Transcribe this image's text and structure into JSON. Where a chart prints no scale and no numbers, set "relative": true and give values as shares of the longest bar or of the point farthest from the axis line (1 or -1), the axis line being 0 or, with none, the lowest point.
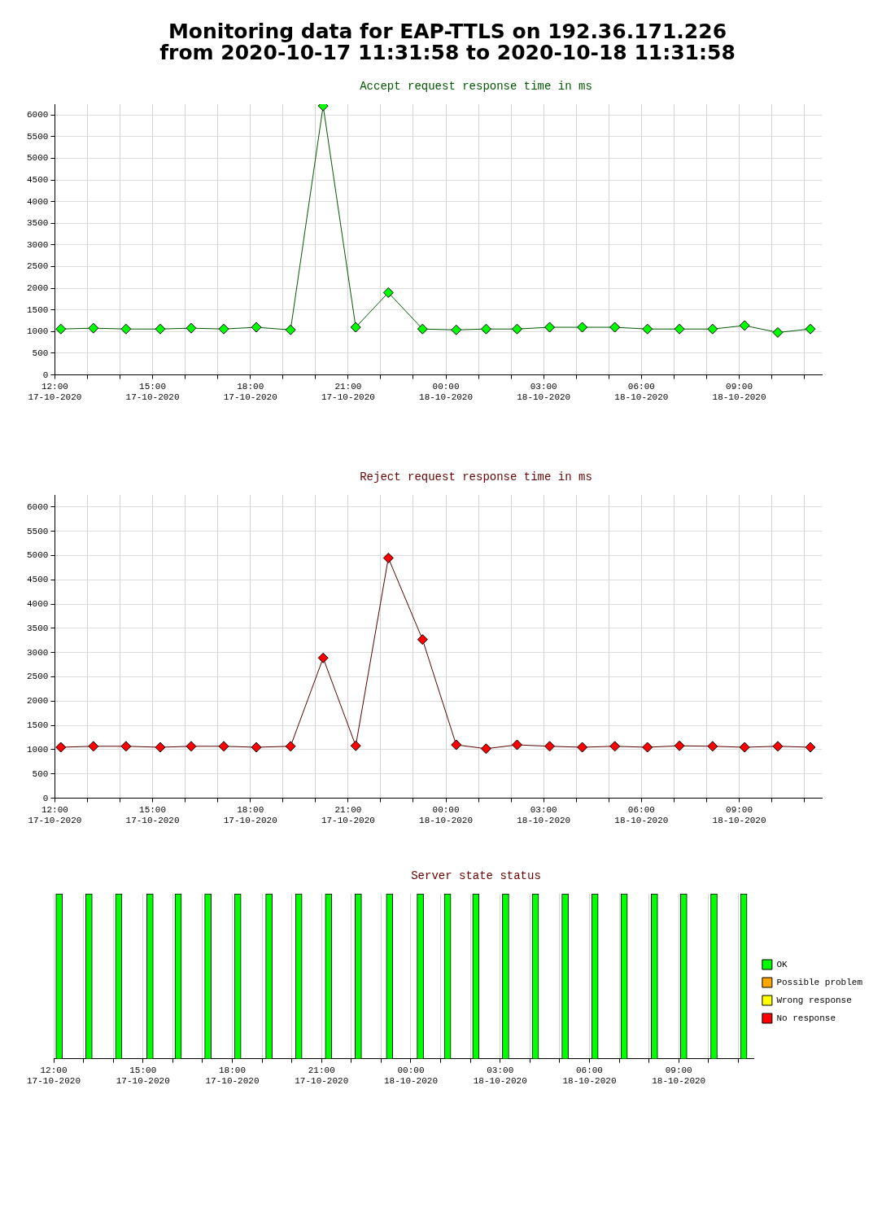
{
  "chart_data": [
    {
      "type": "line",
      "title": "Monitoring data for EAP-TTLS on 192.36.171.226\nfrom 2020-10-17 11:31:58 to 2020-10-18 11:31:58",
      "subtitle": "Accept request response time in ms",
      "x": [
        "2020-10-17T12:11",
        "2020-10-17T13:11",
        "2020-10-17T14:11",
        "2020-10-17T15:14",
        "2020-10-17T16:11",
        "2020-10-17T17:11",
        "2020-10-17T18:11",
        "2020-10-17T19:14",
        "2020-10-17T20:14",
        "2020-10-17T21:14",
        "2020-10-17T22:14",
        "2020-10-17T23:17",
        "2020-10-18T00:19",
        "2020-10-18T01:14",
        "2020-10-18T02:11",
        "2020-10-18T03:11",
        "2020-10-18T04:11",
        "2020-10-18T05:11",
        "2020-10-18T06:11",
        "2020-10-18T07:10",
        "2020-10-18T08:11",
        "2020-10-18T09:10",
        "2020-10-18T10:11",
        "2020-10-18T11:11"
      ],
      "series": [
        {
          "color": "#00ff00",
          "values": [
            1060,
            1080,
            1060,
            1060,
            1080,
            1060,
            1100,
            1040,
            6210,
            1100,
            1900,
            1060,
            1040,
            1060,
            1060,
            1100,
            1100,
            1100,
            1060,
            1060,
            1060,
            1140,
            980,
            1060
          ]
        }
      ],
      "xlim": [
        "2020-10-17T12:00",
        "2020-10-18T11:32"
      ],
      "xticks": [
        {
          "value": "2020-10-17T12:00",
          "label": "12:00\n17-10-2020"
        },
        {
          "value": "2020-10-17T13:00",
          "label": null
        },
        {
          "value": "2020-10-17T14:00",
          "label": null
        },
        {
          "value": "2020-10-17T15:00",
          "label": "15:00\n17-10-2020"
        },
        {
          "value": "2020-10-17T16:00",
          "label": null
        },
        {
          "value": "2020-10-17T17:00",
          "label": null
        },
        {
          "value": "2020-10-17T18:00",
          "label": "18:00\n17-10-2020"
        },
        {
          "value": "2020-10-17T19:00",
          "label": null
        },
        {
          "value": "2020-10-17T20:00",
          "label": null
        },
        {
          "value": "2020-10-17T21:00",
          "label": "21:00\n17-10-2020"
        },
        {
          "value": "2020-10-17T22:00",
          "label": null
        },
        {
          "value": "2020-10-17T23:00",
          "label": null
        },
        {
          "value": "2020-10-18T00:00",
          "label": "00:00\n18-10-2020"
        },
        {
          "value": "2020-10-18T01:00",
          "label": null
        },
        {
          "value": "2020-10-18T02:00",
          "label": null
        },
        {
          "value": "2020-10-18T03:00",
          "label": "03:00\n18-10-2020"
        },
        {
          "value": "2020-10-18T04:00",
          "label": null
        },
        {
          "value": "2020-10-18T05:00",
          "label": null
        },
        {
          "value": "2020-10-18T06:00",
          "label": "06:00\n18-10-2020"
        },
        {
          "value": "2020-10-18T07:00",
          "label": null
        },
        {
          "value": "2020-10-18T08:00",
          "label": null
        },
        {
          "value": "2020-10-18T09:00",
          "label": "09:00\n18-10-2020"
        },
        {
          "value": "2020-10-18T10:00",
          "label": null
        },
        {
          "value": "2020-10-18T11:00",
          "label": null
        }
      ],
      "ylim": [
        0,
        6250
      ],
      "yticks": [
        0,
        500,
        1000,
        1500,
        2000,
        2500,
        3000,
        3500,
        4000,
        4500,
        5000,
        5500,
        6000
      ],
      "grid": true,
      "marker": "diamond",
      "legend": false
    },
    {
      "type": "line",
      "title": "Reject request response time in ms",
      "x": [
        "2020-10-17T12:11",
        "2020-10-17T13:11",
        "2020-10-17T14:11",
        "2020-10-17T15:14",
        "2020-10-17T16:11",
        "2020-10-17T17:11",
        "2020-10-17T18:11",
        "2020-10-17T19:14",
        "2020-10-17T20:14",
        "2020-10-17T21:14",
        "2020-10-17T22:14",
        "2020-10-17T23:17",
        "2020-10-18T00:19",
        "2020-10-18T01:14",
        "2020-10-18T02:11",
        "2020-10-18T03:11",
        "2020-10-18T04:11",
        "2020-10-18T05:11",
        "2020-10-18T06:11",
        "2020-10-18T07:10",
        "2020-10-18T08:11",
        "2020-10-18T09:10",
        "2020-10-18T10:11",
        "2020-10-18T11:11"
      ],
      "series": [
        {
          "color": "#ff0000",
          "values": [
            1050,
            1070,
            1070,
            1050,
            1070,
            1070,
            1050,
            1070,
            2890,
            1080,
            4950,
            3270,
            1100,
            1020,
            1100,
            1070,
            1050,
            1070,
            1050,
            1080,
            1070,
            1050,
            1070,
            1050
          ]
        }
      ],
      "xlim": [
        "2020-10-17T12:00",
        "2020-10-18T11:32"
      ],
      "xticks": [
        {
          "value": "2020-10-17T12:00",
          "label": "12:00\n17-10-2020"
        },
        {
          "value": "2020-10-17T13:00",
          "label": null
        },
        {
          "value": "2020-10-17T14:00",
          "label": null
        },
        {
          "value": "2020-10-17T15:00",
          "label": "15:00\n17-10-2020"
        },
        {
          "value": "2020-10-17T16:00",
          "label": null
        },
        {
          "value": "2020-10-17T17:00",
          "label": null
        },
        {
          "value": "2020-10-17T18:00",
          "label": "18:00\n17-10-2020"
        },
        {
          "value": "2020-10-17T19:00",
          "label": null
        },
        {
          "value": "2020-10-17T20:00",
          "label": null
        },
        {
          "value": "2020-10-17T21:00",
          "label": "21:00\n17-10-2020"
        },
        {
          "value": "2020-10-17T22:00",
          "label": null
        },
        {
          "value": "2020-10-17T23:00",
          "label": null
        },
        {
          "value": "2020-10-18T00:00",
          "label": "00:00\n18-10-2020"
        },
        {
          "value": "2020-10-18T01:00",
          "label": null
        },
        {
          "value": "2020-10-18T02:00",
          "label": null
        },
        {
          "value": "2020-10-18T03:00",
          "label": "03:00\n18-10-2020"
        },
        {
          "value": "2020-10-18T04:00",
          "label": null
        },
        {
          "value": "2020-10-18T05:00",
          "label": null
        },
        {
          "value": "2020-10-18T06:00",
          "label": "06:00\n18-10-2020"
        },
        {
          "value": "2020-10-18T07:00",
          "label": null
        },
        {
          "value": "2020-10-18T08:00",
          "label": null
        },
        {
          "value": "2020-10-18T09:00",
          "label": "09:00\n18-10-2020"
        },
        {
          "value": "2020-10-18T10:00",
          "label": null
        },
        {
          "value": "2020-10-18T11:00",
          "label": null
        }
      ],
      "ylim": [
        0,
        6250
      ],
      "yticks": [
        0,
        500,
        1000,
        1500,
        2000,
        2500,
        3000,
        3500,
        4000,
        4500,
        5000,
        5500,
        6000
      ],
      "grid": true,
      "marker": "diamond",
      "legend": false
    },
    {
      "type": "bar",
      "title": "Server state status",
      "relative": true,
      "stacked": true,
      "x": [
        "2020-10-17T12:11",
        "2020-10-17T13:11",
        "2020-10-17T14:11",
        "2020-10-17T15:14",
        "2020-10-17T16:11",
        "2020-10-17T17:11",
        "2020-10-17T18:11",
        "2020-10-17T19:14",
        "2020-10-17T20:14",
        "2020-10-17T21:14",
        "2020-10-17T22:14",
        "2020-10-17T23:17",
        "2020-10-18T00:19",
        "2020-10-18T01:14",
        "2020-10-18T02:11",
        "2020-10-18T03:11",
        "2020-10-18T04:11",
        "2020-10-18T05:11",
        "2020-10-18T06:11",
        "2020-10-18T07:10",
        "2020-10-18T08:11",
        "2020-10-18T09:10",
        "2020-10-18T10:11",
        "2020-10-18T11:11"
      ],
      "series": [
        {
          "name": "OK",
          "color": "#00ff00",
          "values": [
            1,
            1,
            1,
            1,
            1,
            1,
            1,
            1,
            1,
            1,
            1,
            1,
            1,
            1,
            1,
            1,
            1,
            1,
            1,
            1,
            1,
            1,
            1,
            1
          ]
        },
        {
          "name": "Possible problem",
          "color": "#ffa500",
          "values": [
            0,
            0,
            0,
            0,
            0,
            0,
            0,
            0,
            0,
            0,
            0,
            0,
            0,
            0,
            0,
            0,
            0,
            0,
            0,
            0,
            0,
            0,
            0,
            0
          ]
        },
        {
          "name": "Wrong response",
          "color": "#ffff00",
          "values": [
            0,
            0,
            0,
            0,
            0,
            0,
            0,
            0,
            0,
            0,
            0,
            0,
            0,
            0,
            0,
            0,
            0,
            0,
            0,
            0,
            0,
            0,
            0,
            0
          ]
        },
        {
          "name": "No response",
          "color": "#ff0000",
          "values": [
            0,
            0,
            0,
            0,
            0,
            0,
            0,
            0,
            0,
            0,
            0,
            0,
            0,
            0,
            0,
            0,
            0,
            0,
            0,
            0,
            0,
            0,
            0,
            0
          ]
        }
      ],
      "xlim": [
        "2020-10-17T12:00",
        "2020-10-18T11:32"
      ],
      "xticks": [
        {
          "value": "2020-10-17T12:00",
          "label": "12:00\n17-10-2020"
        },
        {
          "value": "2020-10-17T13:00",
          "label": null
        },
        {
          "value": "2020-10-17T14:00",
          "label": null
        },
        {
          "value": "2020-10-17T15:00",
          "label": "15:00\n17-10-2020"
        },
        {
          "value": "2020-10-17T16:00",
          "label": null
        },
        {
          "value": "2020-10-17T17:00",
          "label": null
        },
        {
          "value": "2020-10-17T18:00",
          "label": "18:00\n17-10-2020"
        },
        {
          "value": "2020-10-17T19:00",
          "label": null
        },
        {
          "value": "2020-10-17T20:00",
          "label": null
        },
        {
          "value": "2020-10-17T21:00",
          "label": "21:00\n17-10-2020"
        },
        {
          "value": "2020-10-17T22:00",
          "label": null
        },
        {
          "value": "2020-10-17T23:00",
          "label": null
        },
        {
          "value": "2020-10-18T00:00",
          "label": "00:00\n18-10-2020"
        },
        {
          "value": "2020-10-18T01:00",
          "label": null
        },
        {
          "value": "2020-10-18T02:00",
          "label": null
        },
        {
          "value": "2020-10-18T03:00",
          "label": "03:00\n18-10-2020"
        },
        {
          "value": "2020-10-18T04:00",
          "label": null
        },
        {
          "value": "2020-10-18T05:00",
          "label": null
        },
        {
          "value": "2020-10-18T06:00",
          "label": "06:00\n18-10-2020"
        },
        {
          "value": "2020-10-18T07:00",
          "label": null
        },
        {
          "value": "2020-10-18T08:00",
          "label": null
        },
        {
          "value": "2020-10-18T09:00",
          "label": "09:00\n18-10-2020"
        },
        {
          "value": "2020-10-18T10:00",
          "label": null
        },
        {
          "value": "2020-10-18T11:00",
          "label": null
        }
      ],
      "grid": "x",
      "legend": "right"
    }
  ]
}
